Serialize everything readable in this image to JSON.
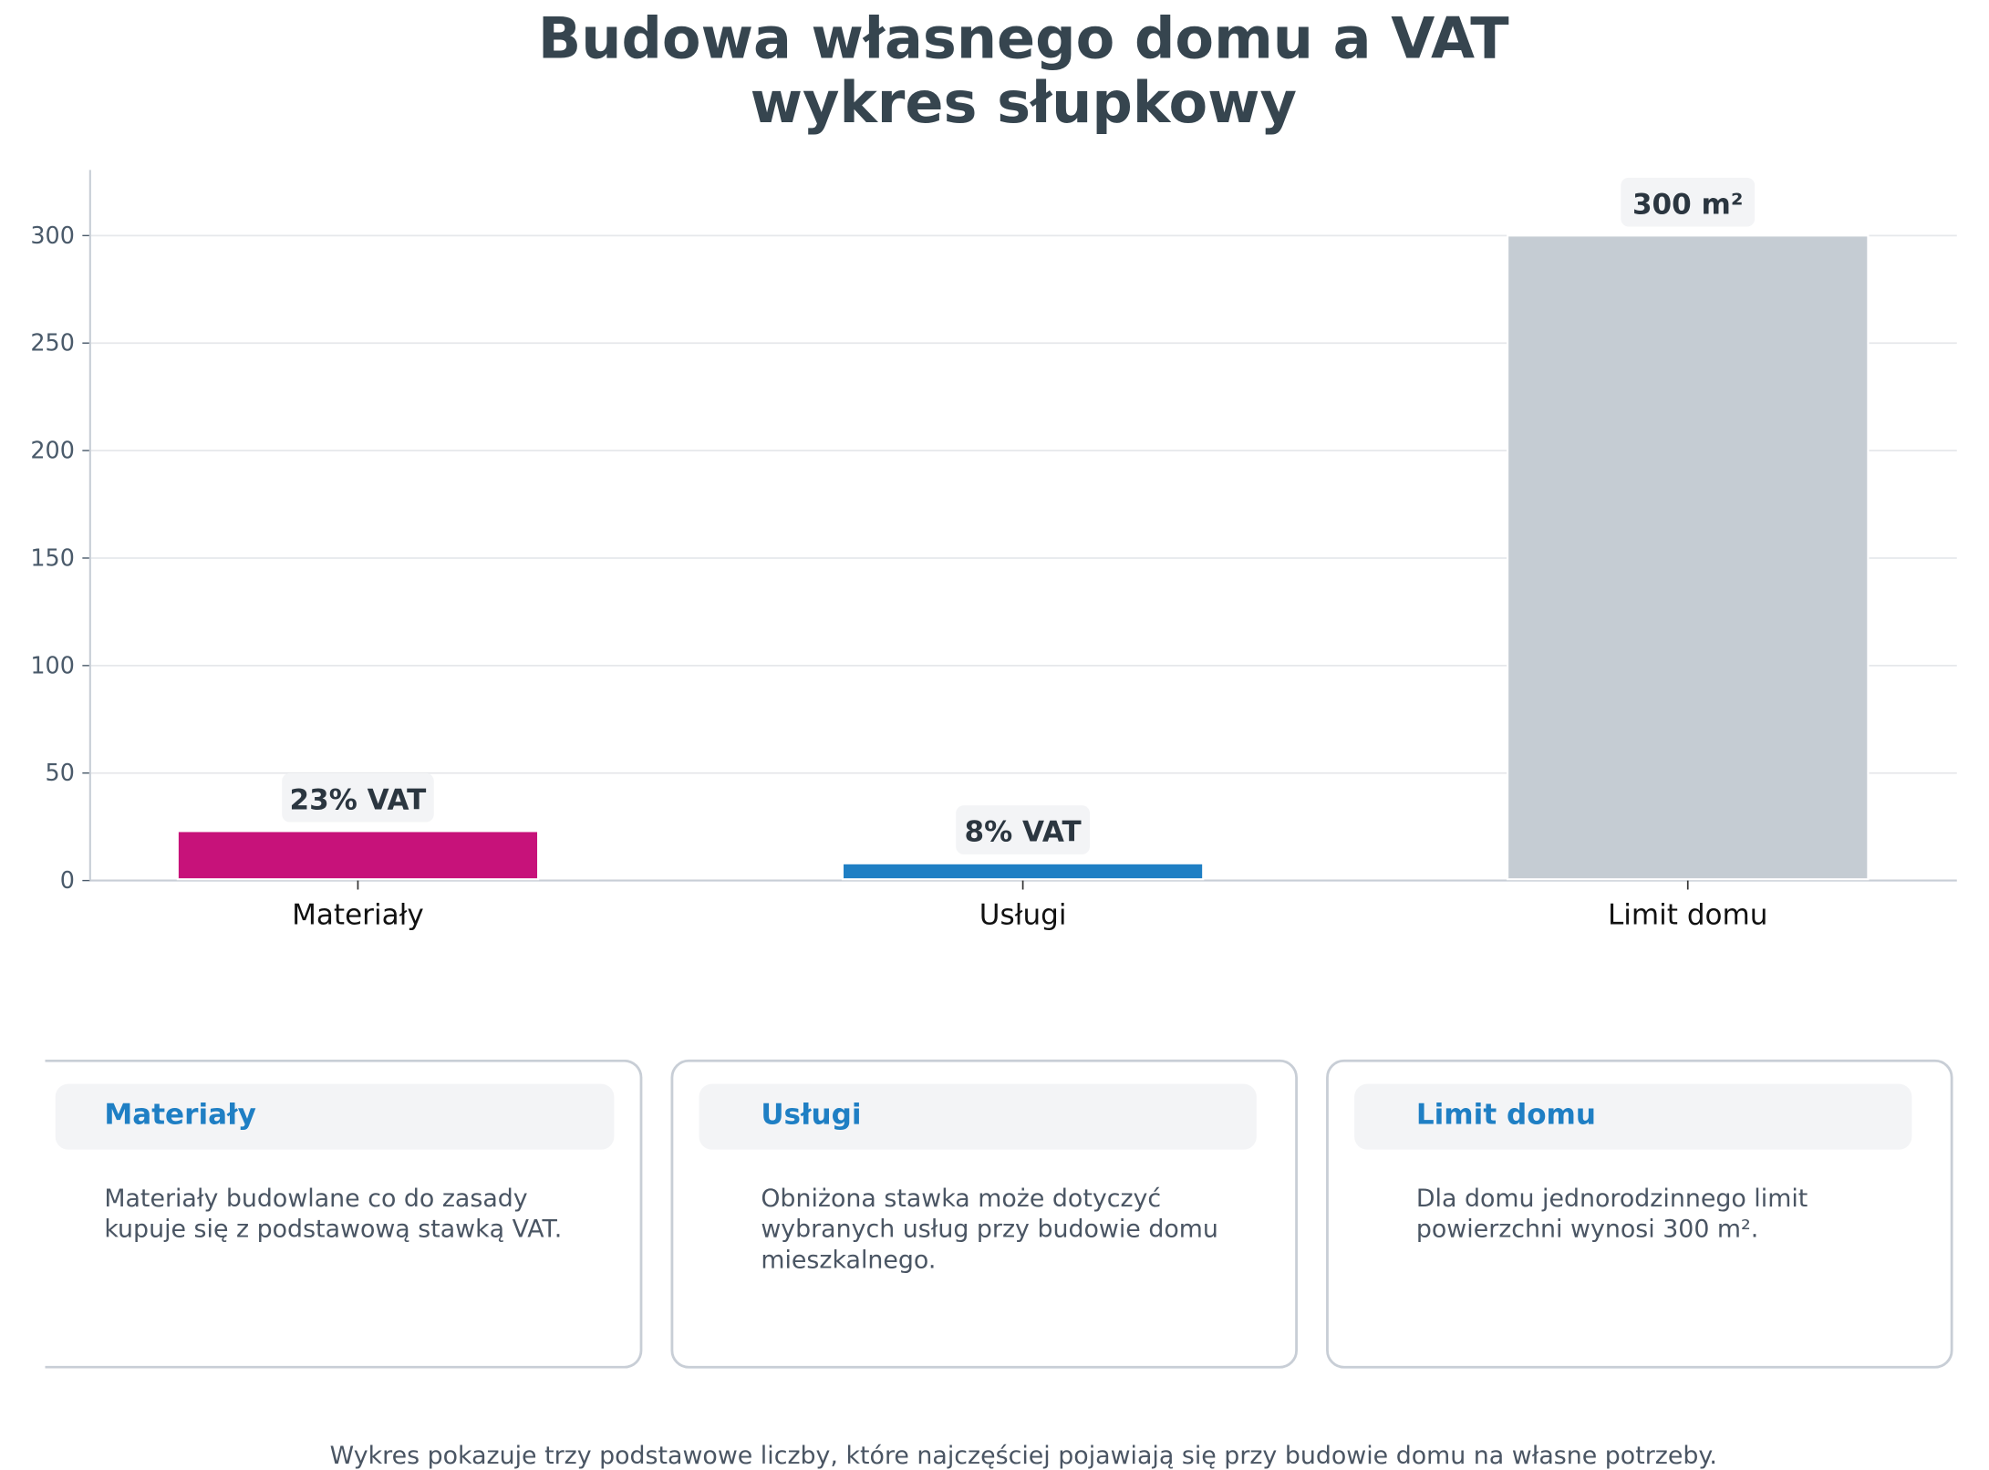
{
  "chart_data": {
    "type": "bar",
    "title": "Budowa własnego domu a VAT",
    "subtitle": "wykres słupkowy",
    "categories": [
      "Materiały",
      "Usługi",
      "Limit domu"
    ],
    "values": [
      23,
      8,
      300
    ],
    "data_labels": [
      "23% VAT",
      "8% VAT",
      "300 m²"
    ],
    "colors": [
      "#c7127a",
      "#1f7fc4",
      "#c5ccd3"
    ],
    "xlabel": "",
    "ylabel": "",
    "ylim": [
      0,
      330
    ],
    "yticks": [
      "0",
      "50",
      "100",
      "150",
      "200",
      "250",
      "300"
    ],
    "grid": true
  },
  "cards": [
    {
      "title": "Materiały",
      "text": "Materiały budowlane co do zasady kupuje się z podstawową stawką VAT."
    },
    {
      "title": "Usługi",
      "text": "Obniżona stawka może dotyczyć wybranych usług przy budowie domu mieszkalnego."
    },
    {
      "title": "Limit domu",
      "text": "Dla domu jednorodzinnego limit powierzchni wynosi 300 m²."
    }
  ],
  "footer": "Wykres pokazuje trzy podstawowe liczby, które najczęściej pojawiają się przy budowie domu na własne potrzeby."
}
